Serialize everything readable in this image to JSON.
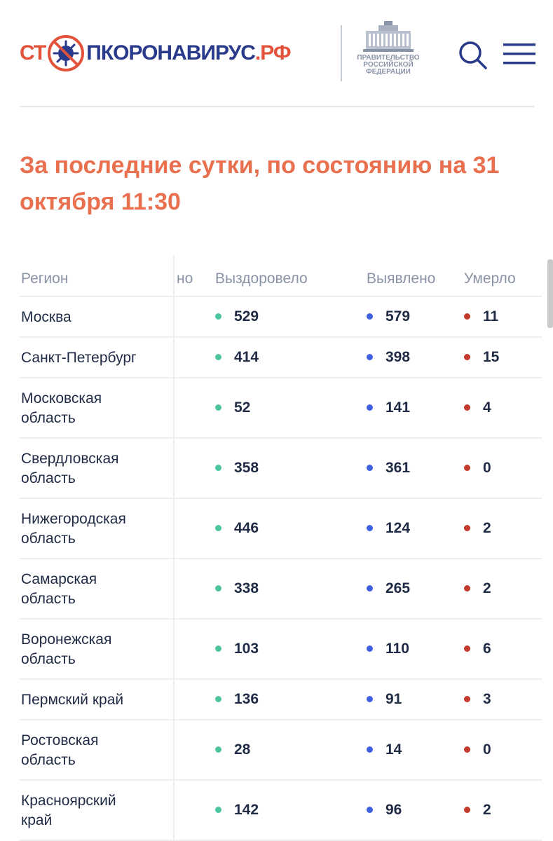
{
  "header": {
    "logo": {
      "left": "СТ",
      "right": "ПКОРОНАВИРУС",
      "suffix": ".РФ"
    },
    "government_label": "ПРАВИТЕЛЬСТВО\nРОССИЙСКОЙ\nФЕДЕРАЦИИ",
    "search_icon": "search-icon",
    "menu_icon": "hamburger-menu-icon"
  },
  "headline": "За последние сутки, по состоянию на 31 октября 11:30",
  "table": {
    "columns": {
      "region": "Регион",
      "hidden": "но",
      "recovered": "Выздоровело",
      "detected": "Выявлено",
      "died": "Умерло"
    },
    "rows": [
      {
        "region": "Москва",
        "recovered": "529",
        "detected": "579",
        "died": "11"
      },
      {
        "region": "Санкт-Петербург",
        "recovered": "414",
        "detected": "398",
        "died": "15"
      },
      {
        "region": "Московская\nобласть",
        "recovered": "52",
        "detected": "141",
        "died": "4"
      },
      {
        "region": "Свердловская\nобласть",
        "recovered": "358",
        "detected": "361",
        "died": "0"
      },
      {
        "region": "Нижегородская\nобласть",
        "recovered": "446",
        "detected": "124",
        "died": "2"
      },
      {
        "region": "Самарская\nобласть",
        "recovered": "338",
        "detected": "265",
        "died": "2"
      },
      {
        "region": "Воронежская\nобласть",
        "recovered": "103",
        "detected": "110",
        "died": "6"
      },
      {
        "region": "Пермский край",
        "recovered": "136",
        "detected": "91",
        "died": "3"
      },
      {
        "region": "Ростовская\nобласть",
        "recovered": "28",
        "detected": "14",
        "died": "0"
      },
      {
        "region": "Красноярский\nкрай",
        "recovered": "142",
        "detected": "96",
        "died": "2"
      }
    ]
  },
  "colors": {
    "accent": "#e8704f",
    "brand_blue": "#2a3a8a",
    "recovered": "#4cc4a0",
    "detected": "#3e5fe0",
    "died": "#c2392b"
  }
}
